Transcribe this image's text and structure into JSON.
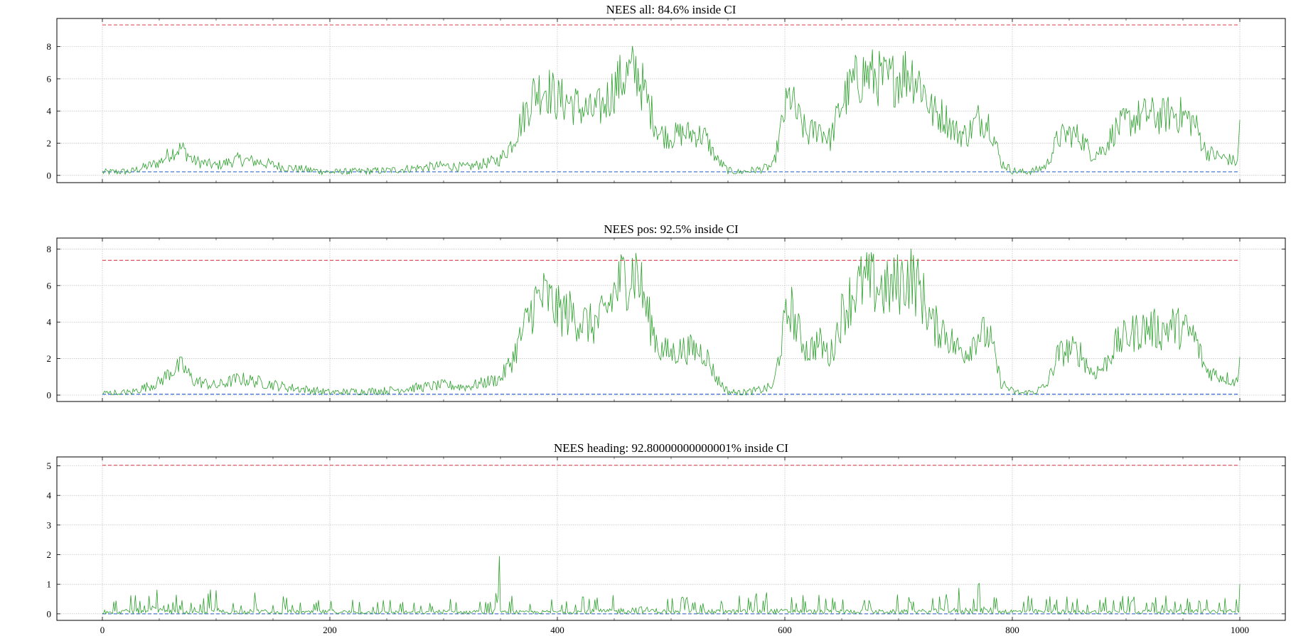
{
  "colors": {
    "series": "#2ca02c",
    "upper_bound": "#e8505b",
    "lower_bound": "#3a6bd8",
    "grid": "#b0b0b0",
    "axes": "#000000"
  },
  "chart_data": [
    {
      "type": "line",
      "title": "NEES all: 84.6% inside CI",
      "xlabel": "",
      "ylabel": "",
      "xlim": [
        -40,
        1040
      ],
      "ylim": [
        -0.45,
        9.75
      ],
      "xticks": [
        0,
        200,
        400,
        600,
        800,
        1000
      ],
      "yticks": [
        0,
        2,
        4,
        6,
        8
      ],
      "show_xtick_labels": false,
      "grid": true,
      "upper_bound": 9.35,
      "lower_bound": 0.22,
      "series": [
        {
          "x": [
            0,
            25,
            50,
            60,
            70,
            80,
            100,
            120,
            140,
            160,
            180,
            200,
            250,
            300,
            320,
            340,
            350,
            360,
            370,
            380,
            390,
            400,
            410,
            420,
            430,
            440,
            450,
            460,
            470,
            480,
            490,
            500,
            510,
            520,
            530,
            540,
            550,
            560,
            580,
            590,
            600,
            605,
            610,
            620,
            630,
            640,
            650,
            660,
            670,
            680,
            690,
            700,
            710,
            720,
            730,
            740,
            750,
            760,
            770,
            780,
            790,
            800,
            810,
            820,
            830,
            840,
            850,
            860,
            870,
            880,
            890,
            900,
            910,
            920,
            930,
            940,
            950,
            960,
            970,
            980,
            990,
            998,
            1000
          ],
          "y": [
            0.2,
            0.25,
            0.8,
            1.4,
            1.7,
            0.9,
            0.6,
            1.0,
            0.8,
            0.5,
            0.35,
            0.2,
            0.3,
            0.6,
            0.5,
            0.8,
            1.0,
            2.0,
            3.6,
            5.2,
            5.5,
            4.7,
            4.6,
            4.2,
            3.9,
            4.3,
            5.5,
            6.2,
            6.5,
            4.4,
            2.6,
            2.4,
            2.6,
            2.6,
            2.4,
            1.0,
            0.3,
            0.2,
            0.4,
            0.6,
            4.0,
            5.0,
            3.8,
            2.5,
            3.0,
            2.2,
            4.5,
            5.7,
            6.3,
            6.1,
            5.8,
            6.2,
            6.5,
            5.7,
            3.9,
            3.7,
            2.7,
            2.5,
            3.5,
            3.3,
            0.8,
            0.3,
            0.2,
            0.3,
            0.6,
            2.3,
            2.6,
            2.4,
            1.3,
            1.6,
            2.8,
            3.3,
            3.6,
            3.8,
            3.6,
            3.9,
            3.7,
            3.3,
            1.5,
            1.2,
            1.0,
            0.8,
            3.3
          ]
        }
      ]
    },
    {
      "type": "line",
      "title": "NEES pos: 92.5% inside CI",
      "xlabel": "",
      "ylabel": "",
      "xlim": [
        -40,
        1040
      ],
      "ylim": [
        -0.35,
        8.6
      ],
      "xticks": [
        0,
        200,
        400,
        600,
        800,
        1000
      ],
      "yticks": [
        0,
        2,
        4,
        6,
        8
      ],
      "show_xtick_labels": false,
      "grid": true,
      "upper_bound": 7.38,
      "lower_bound": 0.05,
      "series": [
        {
          "x": [
            0,
            25,
            50,
            60,
            70,
            80,
            100,
            120,
            140,
            160,
            180,
            200,
            250,
            300,
            320,
            340,
            350,
            360,
            370,
            380,
            390,
            400,
            410,
            420,
            430,
            440,
            450,
            460,
            470,
            480,
            490,
            500,
            510,
            520,
            530,
            540,
            550,
            560,
            580,
            590,
            600,
            605,
            610,
            620,
            630,
            640,
            650,
            660,
            670,
            680,
            690,
            700,
            710,
            720,
            730,
            740,
            750,
            760,
            770,
            780,
            790,
            800,
            810,
            820,
            830,
            840,
            850,
            860,
            870,
            880,
            890,
            900,
            910,
            920,
            930,
            940,
            950,
            960,
            970,
            980,
            990,
            998,
            1000
          ],
          "y": [
            0.1,
            0.15,
            0.7,
            1.3,
            1.6,
            0.8,
            0.5,
            0.9,
            0.7,
            0.45,
            0.3,
            0.15,
            0.25,
            0.55,
            0.45,
            0.75,
            0.9,
            1.9,
            3.5,
            5.1,
            5.4,
            4.6,
            4.5,
            4.1,
            3.8,
            4.2,
            5.6,
            6.6,
            6.8,
            4.3,
            2.5,
            2.3,
            2.5,
            2.5,
            2.3,
            0.9,
            0.2,
            0.1,
            0.3,
            0.5,
            3.9,
            4.9,
            3.7,
            2.4,
            2.9,
            2.1,
            4.4,
            5.6,
            6.2,
            6.0,
            5.7,
            6.1,
            6.6,
            5.6,
            3.8,
            3.6,
            2.6,
            2.4,
            3.4,
            3.2,
            0.7,
            0.2,
            0.1,
            0.2,
            0.5,
            2.2,
            2.5,
            2.3,
            1.2,
            1.5,
            2.7,
            3.2,
            3.5,
            3.7,
            3.5,
            3.8,
            3.6,
            3.2,
            1.4,
            1.1,
            0.9,
            0.7,
            2.8
          ]
        }
      ]
    },
    {
      "type": "line",
      "title": "NEES heading: 92.80000000000001% inside CI",
      "xlabel": "",
      "ylabel": "",
      "xlim": [
        -40,
        1040
      ],
      "ylim": [
        -0.22,
        5.3
      ],
      "xticks": [
        0,
        200,
        400,
        600,
        800,
        1000
      ],
      "yticks": [
        0,
        1,
        2,
        3,
        4,
        5
      ],
      "show_xtick_labels": true,
      "grid": true,
      "upper_bound": 5.02,
      "lower_bound": 0.0,
      "series": [
        {
          "x": [
            0,
            2,
            5,
            10,
            20,
            30,
            38,
            45,
            55,
            65,
            75,
            85,
            98,
            110,
            125,
            140,
            150,
            160,
            180,
            200,
            230,
            260,
            280,
            300,
            320,
            330,
            340,
            346,
            349,
            352,
            360,
            370,
            390,
            420,
            450,
            470,
            500,
            530,
            560,
            590,
            620,
            650,
            680,
            710,
            740,
            770,
            800,
            830,
            860,
            900,
            940,
            960,
            980,
            999,
            1000
          ],
          "y": [
            0.1,
            0.55,
            0.15,
            0.2,
            0.3,
            0.4,
            0.15,
            0.6,
            0.25,
            0.3,
            0.2,
            0.15,
            0.5,
            0.2,
            0.3,
            0.35,
            0.15,
            0.3,
            0.2,
            0.3,
            0.2,
            0.25,
            0.15,
            0.3,
            0.2,
            0.35,
            0.15,
            0.4,
            1.95,
            0.2,
            0.3,
            0.2,
            0.25,
            0.3,
            0.35,
            0.55,
            0.25,
            0.3,
            0.3,
            0.35,
            0.3,
            0.3,
            0.3,
            0.3,
            0.35,
            0.5,
            0.3,
            0.3,
            0.25,
            0.3,
            0.3,
            0.35,
            0.3,
            0.3,
            1.0
          ]
        }
      ]
    }
  ]
}
